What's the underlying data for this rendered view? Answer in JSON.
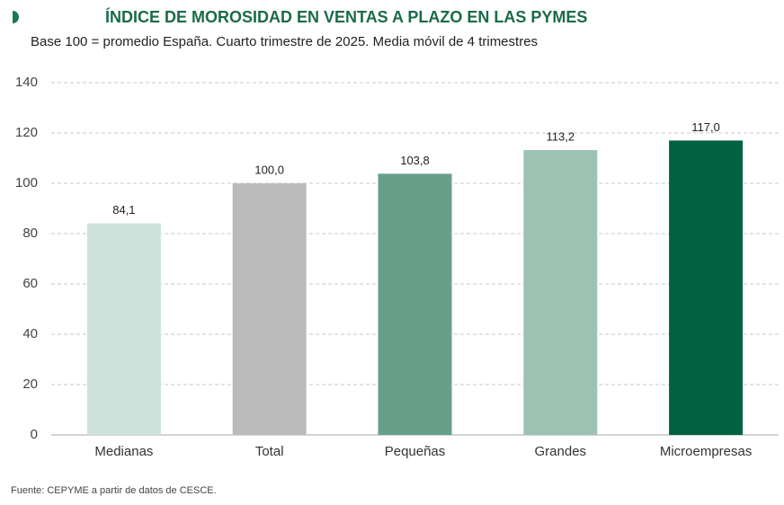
{
  "chart_data": {
    "type": "bar",
    "title": "ÍNDICE DE MOROSIDAD EN VENTAS A PLAZO EN LAS PYMES",
    "subtitle": "Base 100 = promedio España. Cuarto trimestre de 2025. Media móvil de 4 trimestres",
    "source": "Fuente: CEPYME a partir de datos de CESCE.",
    "categories": [
      "Medianas",
      "Total",
      "Pequeñas",
      "Grandes",
      "Microempresas"
    ],
    "values": [
      84.1,
      100.0,
      103.8,
      113.2,
      117.0
    ],
    "value_labels": [
      "84,1",
      "100,0",
      "103,8",
      "113,2",
      "117,0"
    ],
    "colors": [
      "#cde2da",
      "#bbbbbb",
      "#66a08a",
      "#9dc2b4",
      "#006241"
    ],
    "ylim": [
      0,
      140
    ],
    "yticks": [
      0,
      20,
      40,
      60,
      80,
      100,
      120,
      140
    ],
    "grid": true
  }
}
